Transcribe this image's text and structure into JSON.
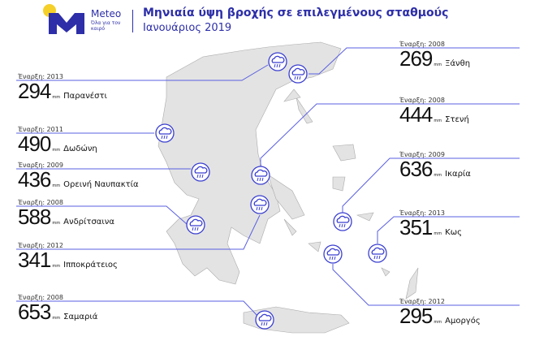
{
  "header": {
    "brand": "Meteo",
    "tagline": "Όλα για τον καιρό",
    "title": "Μηνιαία ύψη βροχής σε επιλεγμένους σταθμούς",
    "subtitle": "Ιανουάριος 2019"
  },
  "colors": {
    "accent": "#3b3fd0",
    "logo_yellow": "#f5d02a",
    "land": "#e3e3e3"
  },
  "unit": "mm",
  "stations": [
    {
      "name": "Παρανέστι",
      "value": "294",
      "since": "Έναρξη: 2013"
    },
    {
      "name": "Δωδώνη",
      "value": "490",
      "since": "Έναρξη: 2011"
    },
    {
      "name": "Ορεινή Ναυπακτία",
      "value": "436",
      "since": "Έναρξη: 2009"
    },
    {
      "name": "Ανδρίτσαινα",
      "value": "588",
      "since": "Έναρξη: 2008"
    },
    {
      "name": "Ιπποκράτειος",
      "value": "341",
      "since": "Έναρξη: 2012"
    },
    {
      "name": "Σαμαριά",
      "value": "653",
      "since": "Έναρξη: 2008"
    },
    {
      "name": "Ξάνθη",
      "value": "269",
      "since": "Έναρξη: 2008"
    },
    {
      "name": "Στενή",
      "value": "444",
      "since": "Έναρξη: 2008"
    },
    {
      "name": "Ικαρία",
      "value": "636",
      "since": "Έναρξη: 2009"
    },
    {
      "name": "Κως",
      "value": "351",
      "since": "Έναρξη: 2013"
    },
    {
      "name": "Αμοργός",
      "value": "295",
      "since": "Έναρξη: 2012"
    }
  ],
  "icon": "rain-cloud-icon"
}
